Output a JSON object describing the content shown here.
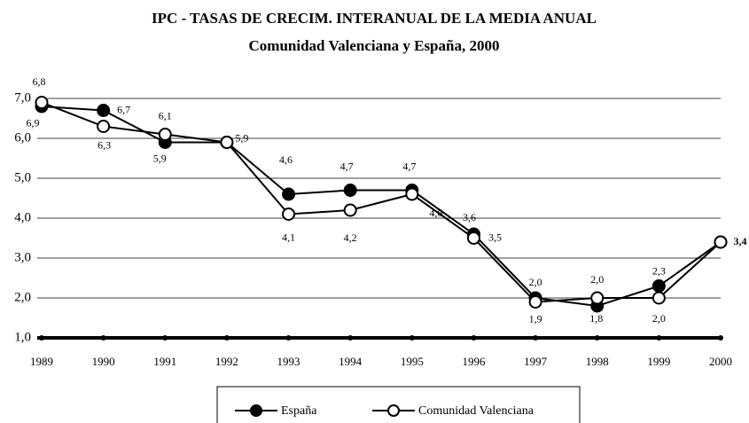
{
  "chart_data": {
    "type": "line",
    "title": "IPC - TASAS DE CRECIM. INTERANUAL DE LA MEDIA ANUAL",
    "subtitle": "Comunidad Valenciana y España, 2000",
    "categories": [
      "1989",
      "1990",
      "1991",
      "1992",
      "1993",
      "1994",
      "1995",
      "1996",
      "1997",
      "1998",
      "1999",
      "2000"
    ],
    "series": [
      {
        "name": "España",
        "color": "#000000",
        "marker": "filled",
        "values": [
          6.8,
          6.7,
          5.9,
          5.9,
          4.6,
          4.7,
          4.7,
          3.6,
          2.0,
          1.8,
          2.3,
          3.4
        ],
        "value_labels": [
          "6,8",
          "6,7",
          "5,9",
          "5,9",
          "4,6",
          "4,7",
          "4,7",
          "3,6",
          "2,0",
          "1,8",
          "2,3",
          "3,4"
        ]
      },
      {
        "name": "Comunidad Valenciana",
        "color": "#000000",
        "marker": "open",
        "values": [
          6.9,
          6.3,
          6.1,
          5.9,
          4.1,
          4.2,
          4.6,
          3.5,
          1.9,
          2.0,
          2.0,
          3.4
        ],
        "value_labels": [
          "6,9",
          "6,3",
          "6,1",
          null,
          "4,1",
          "4,2",
          "4,6",
          "3,5",
          "1,9",
          "2,0",
          "2,0",
          null
        ]
      }
    ],
    "ylim": [
      1,
      7
    ],
    "yticks": [
      {
        "value": 1,
        "label": "1,0"
      },
      {
        "value": 2,
        "label": "2,0"
      },
      {
        "value": 3,
        "label": "3,0"
      },
      {
        "value": 4,
        "label": "4,0"
      },
      {
        "value": 5,
        "label": "5,0"
      },
      {
        "value": 6,
        "label": "6,0"
      },
      {
        "value": 7,
        "label": "7,0"
      }
    ],
    "grid": true,
    "legend": "bottom"
  }
}
